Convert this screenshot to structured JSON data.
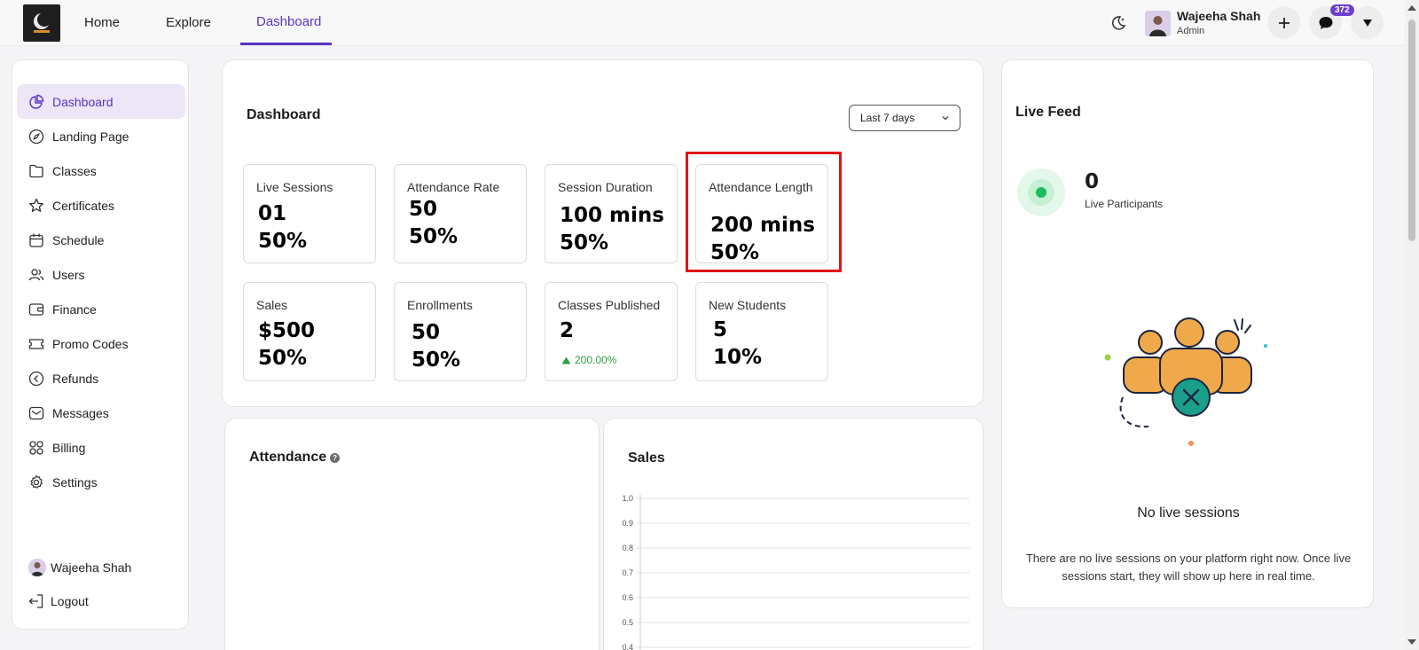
{
  "topbar": {
    "nav": {
      "home": "Home",
      "explore": "Explore",
      "dashboard": "Dashboard"
    },
    "user": {
      "name": "Wajeeha Shah",
      "role": "Admin"
    },
    "notification_count": "372"
  },
  "sidebar": {
    "items": [
      {
        "label": "Dashboard",
        "icon": "pie-chart-icon",
        "active": true
      },
      {
        "label": "Landing Page",
        "icon": "compass-icon"
      },
      {
        "label": "Classes",
        "icon": "folder-icon"
      },
      {
        "label": "Certificates",
        "icon": "star-icon"
      },
      {
        "label": "Schedule",
        "icon": "calendar-icon"
      },
      {
        "label": "Users",
        "icon": "users-icon"
      },
      {
        "label": "Finance",
        "icon": "wallet-icon"
      },
      {
        "label": "Promo Codes",
        "icon": "ticket-icon"
      },
      {
        "label": "Refunds",
        "icon": "refund-icon"
      },
      {
        "label": "Messages",
        "icon": "mail-icon"
      },
      {
        "label": "Billing",
        "icon": "grid-icon"
      },
      {
        "label": "Settings",
        "icon": "gear-icon"
      }
    ],
    "user_name": "Wajeeha Shah",
    "logout": "Logout"
  },
  "dashboard": {
    "title": "Dashboard",
    "range": "Last 7 days",
    "stats": [
      {
        "label": "Live Sessions",
        "value": "01",
        "change": "50%"
      },
      {
        "label": "Attendance Rate",
        "value": "50",
        "change": "50%"
      },
      {
        "label": "Session Duration",
        "value": "100 mins",
        "change": "50%"
      },
      {
        "label": "Attendance Length",
        "value": "200 mins",
        "change": "50%"
      },
      {
        "label": "Sales",
        "value": "$500",
        "change": "50%"
      },
      {
        "label": "Enrollments",
        "value": "50",
        "change": "50%"
      },
      {
        "label": "Classes Published",
        "value": "2",
        "change": "200.00%"
      },
      {
        "label": "New Students",
        "value": "5",
        "change": "10%"
      }
    ]
  },
  "attendance": {
    "title": "Attendance",
    "help_icon": "question-icon"
  },
  "sales": {
    "title": "Sales"
  },
  "chart_data": {
    "type": "line",
    "title": "Sales",
    "y_ticks": [
      "1.0",
      "0.9",
      "0.8",
      "0.7",
      "0.6",
      "0.5",
      "0.4"
    ],
    "ylim": [
      0.4,
      1.0
    ],
    "grid": true,
    "series": []
  },
  "live_feed": {
    "title": "Live Feed",
    "count": "0",
    "count_label": "Live Participants",
    "empty_title": "No live sessions",
    "empty_desc": "There are no live sessions on your platform right now. Once live sessions start, they will show up here in real time."
  },
  "colors": {
    "accent": "#5b33c4",
    "highlight": "#e01313",
    "positive": "#2e9c47",
    "live": "#1dbb62"
  }
}
